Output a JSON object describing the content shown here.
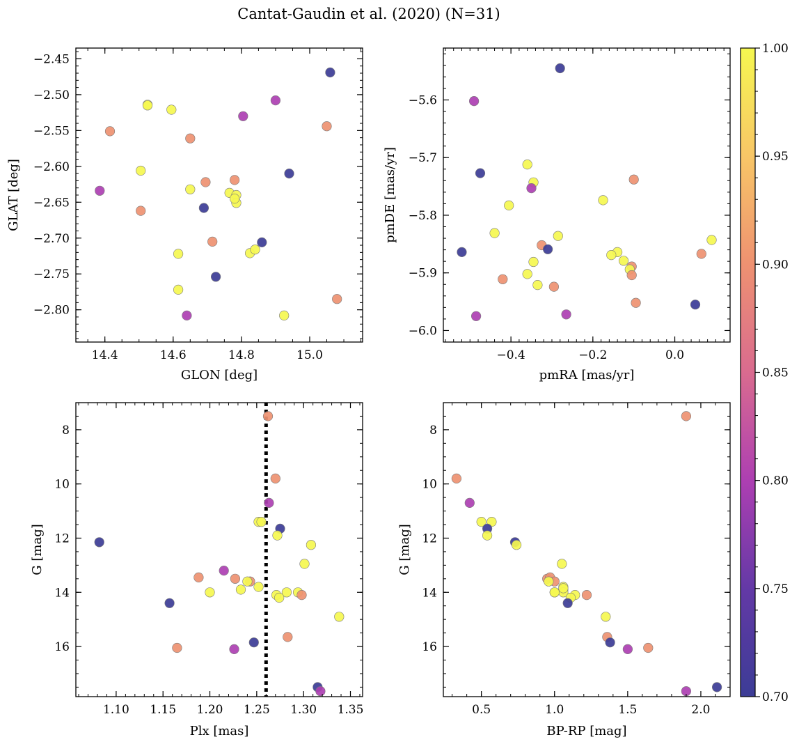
{
  "chart_data": {
    "title": "Cantat-Gaudin et al. (2020) (N=31)",
    "colorbar": {
      "colormap": "plasma",
      "range": [
        0.7,
        1.0
      ],
      "tick_values": [
        0.7,
        0.75,
        0.8,
        0.85,
        0.9,
        0.95,
        1.0
      ],
      "tick_labels": [
        "0.70",
        "0.75",
        "0.80",
        "0.85",
        "0.90",
        "0.95",
        "1.00"
      ]
    },
    "panels": [
      {
        "type": "scatter",
        "xlabel": "GLON [deg]",
        "ylabel": "GLAT [deg]",
        "xlim": [
          14.315,
          15.155
        ],
        "ylim": [
          -2.845,
          -2.435
        ],
        "invert_y": false,
        "xticks": [
          14.4,
          14.6,
          14.8,
          15.0
        ],
        "xtick_labels": [
          "14.4",
          "14.6",
          "14.8",
          "15.0"
        ],
        "yticks": [
          -2.8,
          -2.75,
          -2.7,
          -2.65,
          -2.6,
          -2.55,
          -2.5,
          -2.45
        ],
        "ytick_labels": [
          "−2.80",
          "−2.75",
          "−2.70",
          "−2.65",
          "−2.60",
          "−2.55",
          "−2.50",
          "−2.45"
        ],
        "x": [
          15.06,
          14.525,
          14.595,
          14.9,
          14.805,
          14.415,
          14.65,
          15.05,
          14.505,
          14.94,
          14.385,
          14.65,
          14.695,
          14.78,
          14.765,
          14.785,
          14.785,
          14.69,
          14.505,
          14.715,
          14.86,
          14.825,
          14.84,
          14.615,
          14.615,
          14.725,
          15.08,
          14.64,
          14.925,
          14.78,
          14.525
        ],
        "y": [
          -2.469,
          -2.514,
          -2.521,
          -2.508,
          -2.53,
          -2.551,
          -2.561,
          -2.544,
          -2.606,
          -2.61,
          -2.634,
          -2.632,
          -2.622,
          -2.619,
          -2.637,
          -2.64,
          -2.651,
          -2.658,
          -2.662,
          -2.705,
          -2.706,
          -2.721,
          -2.716,
          -2.722,
          -2.772,
          -2.754,
          -2.785,
          -2.808,
          -2.808,
          -2.645,
          -2.515
        ],
        "c": [
          0.7,
          1.0,
          1.0,
          0.8,
          0.8,
          0.9,
          0.9,
          0.9,
          1.0,
          0.7,
          0.8,
          1.0,
          0.9,
          0.9,
          1.0,
          1.0,
          1.0,
          0.7,
          0.9,
          0.9,
          0.7,
          1.0,
          1.0,
          1.0,
          1.0,
          0.7,
          0.9,
          0.8,
          1.0,
          1.0,
          1.0
        ]
      },
      {
        "type": "scatter",
        "xlabel": "pmRA [mas/yr]",
        "ylabel": "pmDE [mas/yr]",
        "xlim": [
          -0.565,
          0.135
        ],
        "ylim": [
          -6.02,
          -5.51
        ],
        "invert_y": false,
        "xticks": [
          -0.4,
          -0.2,
          0.0
        ],
        "xtick_labels": [
          "−0.4",
          "−0.2",
          "0.0"
        ],
        "yticks": [
          -6.0,
          -5.9,
          -5.8,
          -5.7,
          -5.6
        ],
        "ytick_labels": [
          "−6.0",
          "−5.9",
          "−5.8",
          "−5.7",
          "−5.6"
        ],
        "x": [
          -0.28,
          -0.49,
          -0.475,
          -0.36,
          -0.345,
          -0.35,
          -0.1,
          -0.405,
          -0.175,
          -0.44,
          0.09,
          -0.285,
          -0.325,
          -0.31,
          -0.52,
          -0.14,
          -0.155,
          -0.125,
          0.065,
          -0.105,
          -0.11,
          -0.345,
          -0.36,
          -0.335,
          -0.42,
          -0.295,
          -0.105,
          -0.095,
          0.05,
          -0.485,
          -0.265
        ],
        "y": [
          -5.545,
          -5.602,
          -5.727,
          -5.712,
          -5.743,
          -5.753,
          -5.738,
          -5.783,
          -5.774,
          -5.831,
          -5.843,
          -5.836,
          -5.852,
          -5.859,
          -5.864,
          -5.864,
          -5.869,
          -5.879,
          -5.867,
          -5.889,
          -5.894,
          -5.881,
          -5.902,
          -5.921,
          -5.911,
          -5.924,
          -5.904,
          -5.952,
          -5.955,
          -5.975,
          -5.972
        ],
        "c": [
          0.7,
          0.8,
          0.7,
          1.0,
          1.0,
          0.8,
          0.9,
          1.0,
          1.0,
          1.0,
          1.0,
          1.0,
          0.9,
          0.7,
          0.7,
          1.0,
          1.0,
          1.0,
          0.9,
          0.9,
          1.0,
          1.0,
          1.0,
          1.0,
          0.9,
          0.9,
          0.9,
          0.9,
          0.7,
          0.8,
          0.8
        ]
      },
      {
        "type": "scatter",
        "xlabel": "Plx [mas]",
        "ylabel": "G [mag]",
        "xlim": [
          1.057,
          1.363
        ],
        "ylim": [
          17.85,
          7.0
        ],
        "invert_y": true,
        "xticks": [
          1.1,
          1.15,
          1.2,
          1.25,
          1.3,
          1.35
        ],
        "xtick_labels": [
          "1.10",
          "1.15",
          "1.20",
          "1.25",
          "1.30",
          "1.35"
        ],
        "yticks": [
          8,
          10,
          12,
          14,
          16
        ],
        "ytick_labels": [
          "8",
          "10",
          "12",
          "14",
          "16"
        ],
        "vline": 1.26,
        "x": [
          1.262,
          1.27,
          1.263,
          1.252,
          1.255,
          1.275,
          1.082,
          1.272,
          1.308,
          1.301,
          1.215,
          1.188,
          1.227,
          1.243,
          1.24,
          1.233,
          1.252,
          1.2,
          1.271,
          1.282,
          1.294,
          1.298,
          1.274,
          1.157,
          1.338,
          1.283,
          1.247,
          1.165,
          1.226,
          1.315,
          1.318
        ],
        "y": [
          7.5,
          9.8,
          10.7,
          11.4,
          11.4,
          11.65,
          12.15,
          11.9,
          12.25,
          12.95,
          13.2,
          13.45,
          13.5,
          13.6,
          13.6,
          13.9,
          13.8,
          14.0,
          14.1,
          14.0,
          14.0,
          14.1,
          14.2,
          14.4,
          14.9,
          15.65,
          15.85,
          16.05,
          16.1,
          17.5,
          17.65
        ],
        "c": [
          0.9,
          0.9,
          0.8,
          1.0,
          1.0,
          0.7,
          0.7,
          1.0,
          1.0,
          1.0,
          0.8,
          0.9,
          0.9,
          0.9,
          1.0,
          1.0,
          1.0,
          1.0,
          1.0,
          1.0,
          1.0,
          0.9,
          1.0,
          0.7,
          1.0,
          0.9,
          0.7,
          0.9,
          0.8,
          0.7,
          0.8
        ]
      },
      {
        "type": "scatter",
        "xlabel": "BP-RP [mag]",
        "ylabel": "G [mag]",
        "xlim": [
          0.24,
          2.2
        ],
        "ylim": [
          17.85,
          7.0
        ],
        "invert_y": true,
        "xticks": [
          0.5,
          1.0,
          1.5,
          2.0
        ],
        "xtick_labels": [
          "0.5",
          "1.0",
          "1.5",
          "2.0"
        ],
        "yticks": [
          8,
          10,
          12,
          14,
          16
        ],
        "ytick_labels": [
          "8",
          "10",
          "12",
          "14",
          "16"
        ],
        "x": [
          1.9,
          0.33,
          0.42,
          0.5,
          0.57,
          0.54,
          0.73,
          0.54,
          0.74,
          1.05,
          0.95,
          0.97,
          1.0,
          0.96,
          1.06,
          1.0,
          1.06,
          1.06,
          1.14,
          1.11,
          1.22,
          1.09,
          1.35,
          1.36,
          1.38,
          1.64,
          1.5,
          2.11,
          1.9,
          1.0,
          1.06
        ],
        "y": [
          7.5,
          9.8,
          10.7,
          11.4,
          11.4,
          11.65,
          12.15,
          11.9,
          12.25,
          12.95,
          13.5,
          13.45,
          13.6,
          13.6,
          13.8,
          14.0,
          13.9,
          14.0,
          14.1,
          14.2,
          14.1,
          14.4,
          14.9,
          15.65,
          15.85,
          16.05,
          16.1,
          17.5,
          17.65,
          14.0,
          13.85
        ],
        "c": [
          0.9,
          0.9,
          0.8,
          1.0,
          1.0,
          0.7,
          0.7,
          1.0,
          1.0,
          1.0,
          0.9,
          0.9,
          0.9,
          1.0,
          1.0,
          1.0,
          1.0,
          1.0,
          1.0,
          1.0,
          0.9,
          0.7,
          1.0,
          0.9,
          0.7,
          0.9,
          0.8,
          0.7,
          0.8,
          1.0,
          1.0
        ]
      }
    ]
  }
}
